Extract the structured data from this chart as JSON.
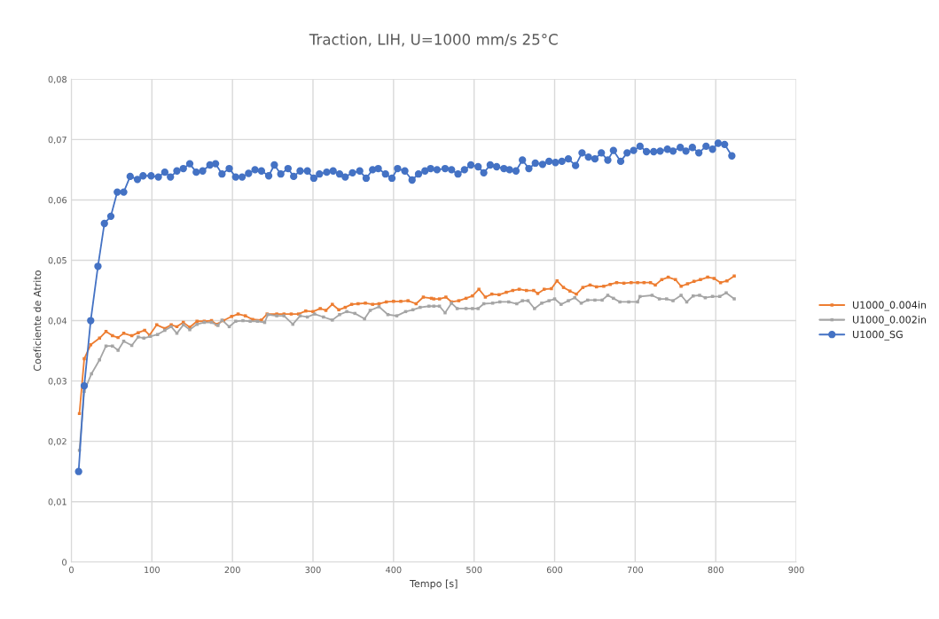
{
  "chart_data": {
    "type": "line",
    "title": "Traction, LIH, U=1000 mm/s 25°C",
    "xlabel": "Tempo [s]",
    "ylabel": "Coeficiente de Atrito",
    "xlim": [
      0,
      900
    ],
    "xticks": [
      0,
      100,
      200,
      300,
      400,
      500,
      600,
      700,
      800,
      900
    ],
    "ylim": [
      0,
      0.08
    ],
    "yticks": [
      {
        "value": 0,
        "label": "0"
      },
      {
        "value": 0.01,
        "label": "0,01"
      },
      {
        "value": 0.02,
        "label": "0,02"
      },
      {
        "value": 0.03,
        "label": "0,03"
      },
      {
        "value": 0.04,
        "label": "0,04"
      },
      {
        "value": 0.05,
        "label": "0,05"
      },
      {
        "value": 0.06,
        "label": "0,06"
      },
      {
        "value": 0.07,
        "label": "0,07"
      },
      {
        "value": 0.08,
        "label": "0,08"
      }
    ],
    "grid": true,
    "legend": "right",
    "line_style": "solid",
    "series": [
      {
        "name": "U1000_0.004in",
        "color": "#ed7d31",
        "marker": "square",
        "x": [
          10,
          16,
          24,
          35,
          43,
          51,
          58,
          65,
          75,
          83,
          91,
          97,
          106,
          116,
          124,
          131,
          139,
          147,
          156,
          165,
          174,
          180,
          189,
          199,
          207,
          216,
          225,
          236,
          243,
          255,
          264,
          273,
          282,
          291,
          300,
          309,
          316,
          324,
          332,
          340,
          348,
          356,
          365,
          374,
          382,
          391,
          400,
          409,
          418,
          428,
          437,
          447,
          450,
          457,
          465,
          472,
          481,
          490,
          498,
          506,
          514,
          522,
          531,
          540,
          548,
          556,
          565,
          574,
          579,
          587,
          596,
          603,
          611,
          619,
          627,
          635,
          644,
          652,
          661,
          669,
          677,
          686,
          695,
          703,
          711,
          719,
          725,
          733,
          741,
          750,
          757,
          765,
          773,
          781,
          790,
          798,
          806,
          814,
          823
        ],
        "values": [
          0.0246,
          0.0337,
          0.036,
          0.0371,
          0.0382,
          0.0375,
          0.0372,
          0.0379,
          0.0375,
          0.038,
          0.0384,
          0.0376,
          0.0393,
          0.0387,
          0.0393,
          0.039,
          0.0397,
          0.0389,
          0.0399,
          0.0399,
          0.04,
          0.0394,
          0.04,
          0.0407,
          0.0411,
          0.0408,
          0.0402,
          0.0401,
          0.0411,
          0.0411,
          0.0411,
          0.0411,
          0.0411,
          0.0416,
          0.0415,
          0.042,
          0.0417,
          0.0427,
          0.0418,
          0.0422,
          0.0427,
          0.0428,
          0.0429,
          0.0427,
          0.0428,
          0.0431,
          0.0432,
          0.0432,
          0.0433,
          0.0428,
          0.0439,
          0.0437,
          0.0436,
          0.0436,
          0.0439,
          0.0431,
          0.0433,
          0.0437,
          0.0441,
          0.0452,
          0.0439,
          0.0444,
          0.0443,
          0.0447,
          0.045,
          0.0452,
          0.045,
          0.045,
          0.0445,
          0.0452,
          0.0453,
          0.0466,
          0.0455,
          0.0449,
          0.0444,
          0.0455,
          0.0459,
          0.0456,
          0.0457,
          0.046,
          0.0463,
          0.0462,
          0.0463,
          0.0463,
          0.0463,
          0.0463,
          0.0459,
          0.0468,
          0.0472,
          0.0468,
          0.0457,
          0.0461,
          0.0465,
          0.0468,
          0.0472,
          0.047,
          0.0463,
          0.0466,
          0.0474
        ]
      },
      {
        "name": "U1000_0.002in",
        "color": "#a5a5a5",
        "marker": "square",
        "x": [
          10,
          16,
          25,
          35,
          43,
          51,
          58,
          65,
          75,
          83,
          90,
          98,
          107,
          116,
          124,
          131,
          139,
          147,
          156,
          165,
          174,
          182,
          187,
          196,
          204,
          213,
          222,
          231,
          240,
          244,
          255,
          264,
          275,
          284,
          293,
          302,
          313,
          324,
          333,
          342,
          352,
          364,
          371,
          382,
          393,
          404,
          415,
          424,
          433,
          444,
          450,
          457,
          464,
          472,
          479,
          490,
          498,
          505,
          512,
          523,
          532,
          543,
          553,
          560,
          567,
          575,
          584,
          593,
          600,
          608,
          617,
          625,
          633,
          641,
          650,
          659,
          666,
          673,
          681,
          692,
          703,
          706,
          721,
          730,
          739,
          747,
          757,
          764,
          772,
          780,
          787,
          796,
          805,
          813,
          823
        ],
        "values": [
          0.0185,
          0.0283,
          0.0312,
          0.0335,
          0.0358,
          0.0358,
          0.0351,
          0.0366,
          0.0359,
          0.0373,
          0.0371,
          0.0374,
          0.0377,
          0.0384,
          0.039,
          0.0379,
          0.0393,
          0.0385,
          0.0394,
          0.0397,
          0.0397,
          0.0392,
          0.0401,
          0.039,
          0.0399,
          0.04,
          0.0399,
          0.0399,
          0.0397,
          0.041,
          0.0408,
          0.0408,
          0.0394,
          0.0408,
          0.0406,
          0.0411,
          0.0406,
          0.0401,
          0.041,
          0.0415,
          0.0412,
          0.0403,
          0.0417,
          0.0423,
          0.041,
          0.0408,
          0.0415,
          0.0418,
          0.0422,
          0.0424,
          0.0424,
          0.0424,
          0.0413,
          0.0429,
          0.042,
          0.042,
          0.042,
          0.042,
          0.0428,
          0.0429,
          0.0431,
          0.0431,
          0.0428,
          0.0433,
          0.0433,
          0.042,
          0.0429,
          0.0433,
          0.0436,
          0.0427,
          0.0433,
          0.0438,
          0.0429,
          0.0434,
          0.0434,
          0.0434,
          0.0442,
          0.0437,
          0.0431,
          0.0431,
          0.0431,
          0.044,
          0.0442,
          0.0436,
          0.0436,
          0.0433,
          0.0442,
          0.0431,
          0.0441,
          0.0442,
          0.0438,
          0.044,
          0.044,
          0.0446,
          0.0436
        ]
      },
      {
        "name": "U1000_SG",
        "color": "#4472c4",
        "marker": "circle",
        "x": [
          9,
          16,
          24,
          33,
          41,
          49,
          57,
          65,
          73,
          82,
          89,
          99,
          108,
          116,
          123,
          131,
          139,
          147,
          155,
          163,
          172,
          179,
          187,
          196,
          204,
          212,
          220,
          228,
          236,
          245,
          252,
          260,
          269,
          276,
          284,
          293,
          301,
          308,
          317,
          325,
          333,
          340,
          349,
          358,
          366,
          374,
          381,
          390,
          398,
          405,
          414,
          423,
          431,
          439,
          446,
          454,
          464,
          472,
          480,
          488,
          496,
          505,
          512,
          520,
          528,
          537,
          544,
          552,
          560,
          568,
          576,
          585,
          593,
          601,
          609,
          617,
          626,
          634,
          642,
          650,
          658,
          666,
          673,
          682,
          690,
          698,
          706,
          714,
          723,
          731,
          740,
          747,
          756,
          763,
          771,
          779,
          788,
          796,
          803,
          811,
          820
        ],
        "values": [
          0.015,
          0.0292,
          0.04,
          0.049,
          0.0561,
          0.0573,
          0.0613,
          0.0613,
          0.0639,
          0.0634,
          0.064,
          0.064,
          0.0638,
          0.0646,
          0.0638,
          0.0648,
          0.0652,
          0.066,
          0.0646,
          0.0648,
          0.0658,
          0.066,
          0.0643,
          0.0652,
          0.0638,
          0.0638,
          0.0644,
          0.065,
          0.0648,
          0.064,
          0.0658,
          0.0643,
          0.0652,
          0.0639,
          0.0648,
          0.0648,
          0.0636,
          0.0643,
          0.0646,
          0.0648,
          0.0643,
          0.0638,
          0.0645,
          0.0648,
          0.0636,
          0.065,
          0.0652,
          0.0643,
          0.0636,
          0.0652,
          0.0648,
          0.0633,
          0.0643,
          0.0648,
          0.0652,
          0.065,
          0.0652,
          0.065,
          0.0643,
          0.065,
          0.0658,
          0.0655,
          0.0645,
          0.0658,
          0.0655,
          0.0652,
          0.065,
          0.0648,
          0.0666,
          0.0652,
          0.0661,
          0.0659,
          0.0664,
          0.0662,
          0.0664,
          0.0668,
          0.0657,
          0.0678,
          0.0671,
          0.0668,
          0.0678,
          0.0666,
          0.0682,
          0.0664,
          0.0678,
          0.0682,
          0.0689,
          0.068,
          0.068,
          0.0681,
          0.0684,
          0.0681,
          0.0687,
          0.0681,
          0.0687,
          0.0678,
          0.0689,
          0.0684,
          0.0694,
          0.0692,
          0.0673
        ]
      }
    ]
  }
}
